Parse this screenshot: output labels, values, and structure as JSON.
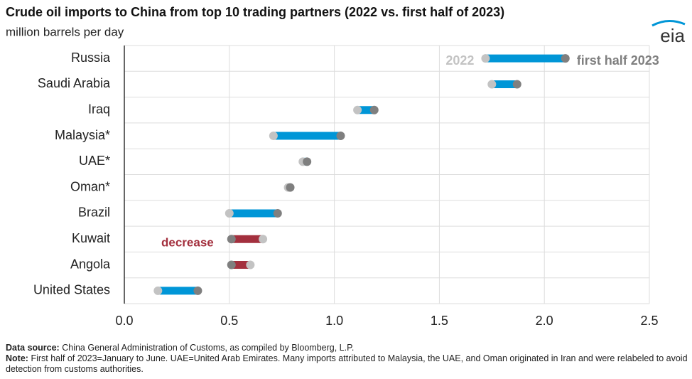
{
  "chart_data": {
    "type": "dumbbell",
    "title": "Crude oil imports to China from top 10 trading partners (2022 vs. first half of 2023)",
    "subtitle": "million barrels per day",
    "logo": "eia",
    "categories": [
      "Russia",
      "Saudi Arabia",
      "Iraq",
      "Malaysia*",
      "UAE*",
      "Oman*",
      "Brazil",
      "Kuwait",
      "Angola",
      "United States"
    ],
    "series": [
      {
        "name": "2022",
        "color": "#c3c3c3",
        "values": [
          1.72,
          1.75,
          1.11,
          0.71,
          0.85,
          0.78,
          0.5,
          0.66,
          0.6,
          0.16
        ]
      },
      {
        "name": "first half 2023",
        "color": "#7f7f7f",
        "values": [
          2.1,
          1.87,
          1.19,
          1.03,
          0.87,
          0.79,
          0.73,
          0.51,
          0.51,
          0.35
        ]
      }
    ],
    "increase_color": "#0096d7",
    "decrease_color": "#a3303e",
    "annotation": "decrease",
    "xlim": [
      0,
      2.5
    ],
    "xticks": [
      {
        "value": 0,
        "label": "0.0"
      },
      0.5,
      {
        "value": 1,
        "label": "1.0"
      },
      1.5,
      {
        "value": 2,
        "label": "2.0"
      },
      2.5
    ],
    "grid": true,
    "source_label": "Data source:",
    "source": "China General Administration of Customs, as compiled by Bloomberg, L.P.",
    "note_label": "Note:",
    "note": "First half of 2023=January to June. UAE=United Arab Emirates. Many imports attributed to Malaysia, the UAE, and Oman originated in Iran and were relabeled to avoid detection from customs authorities."
  }
}
